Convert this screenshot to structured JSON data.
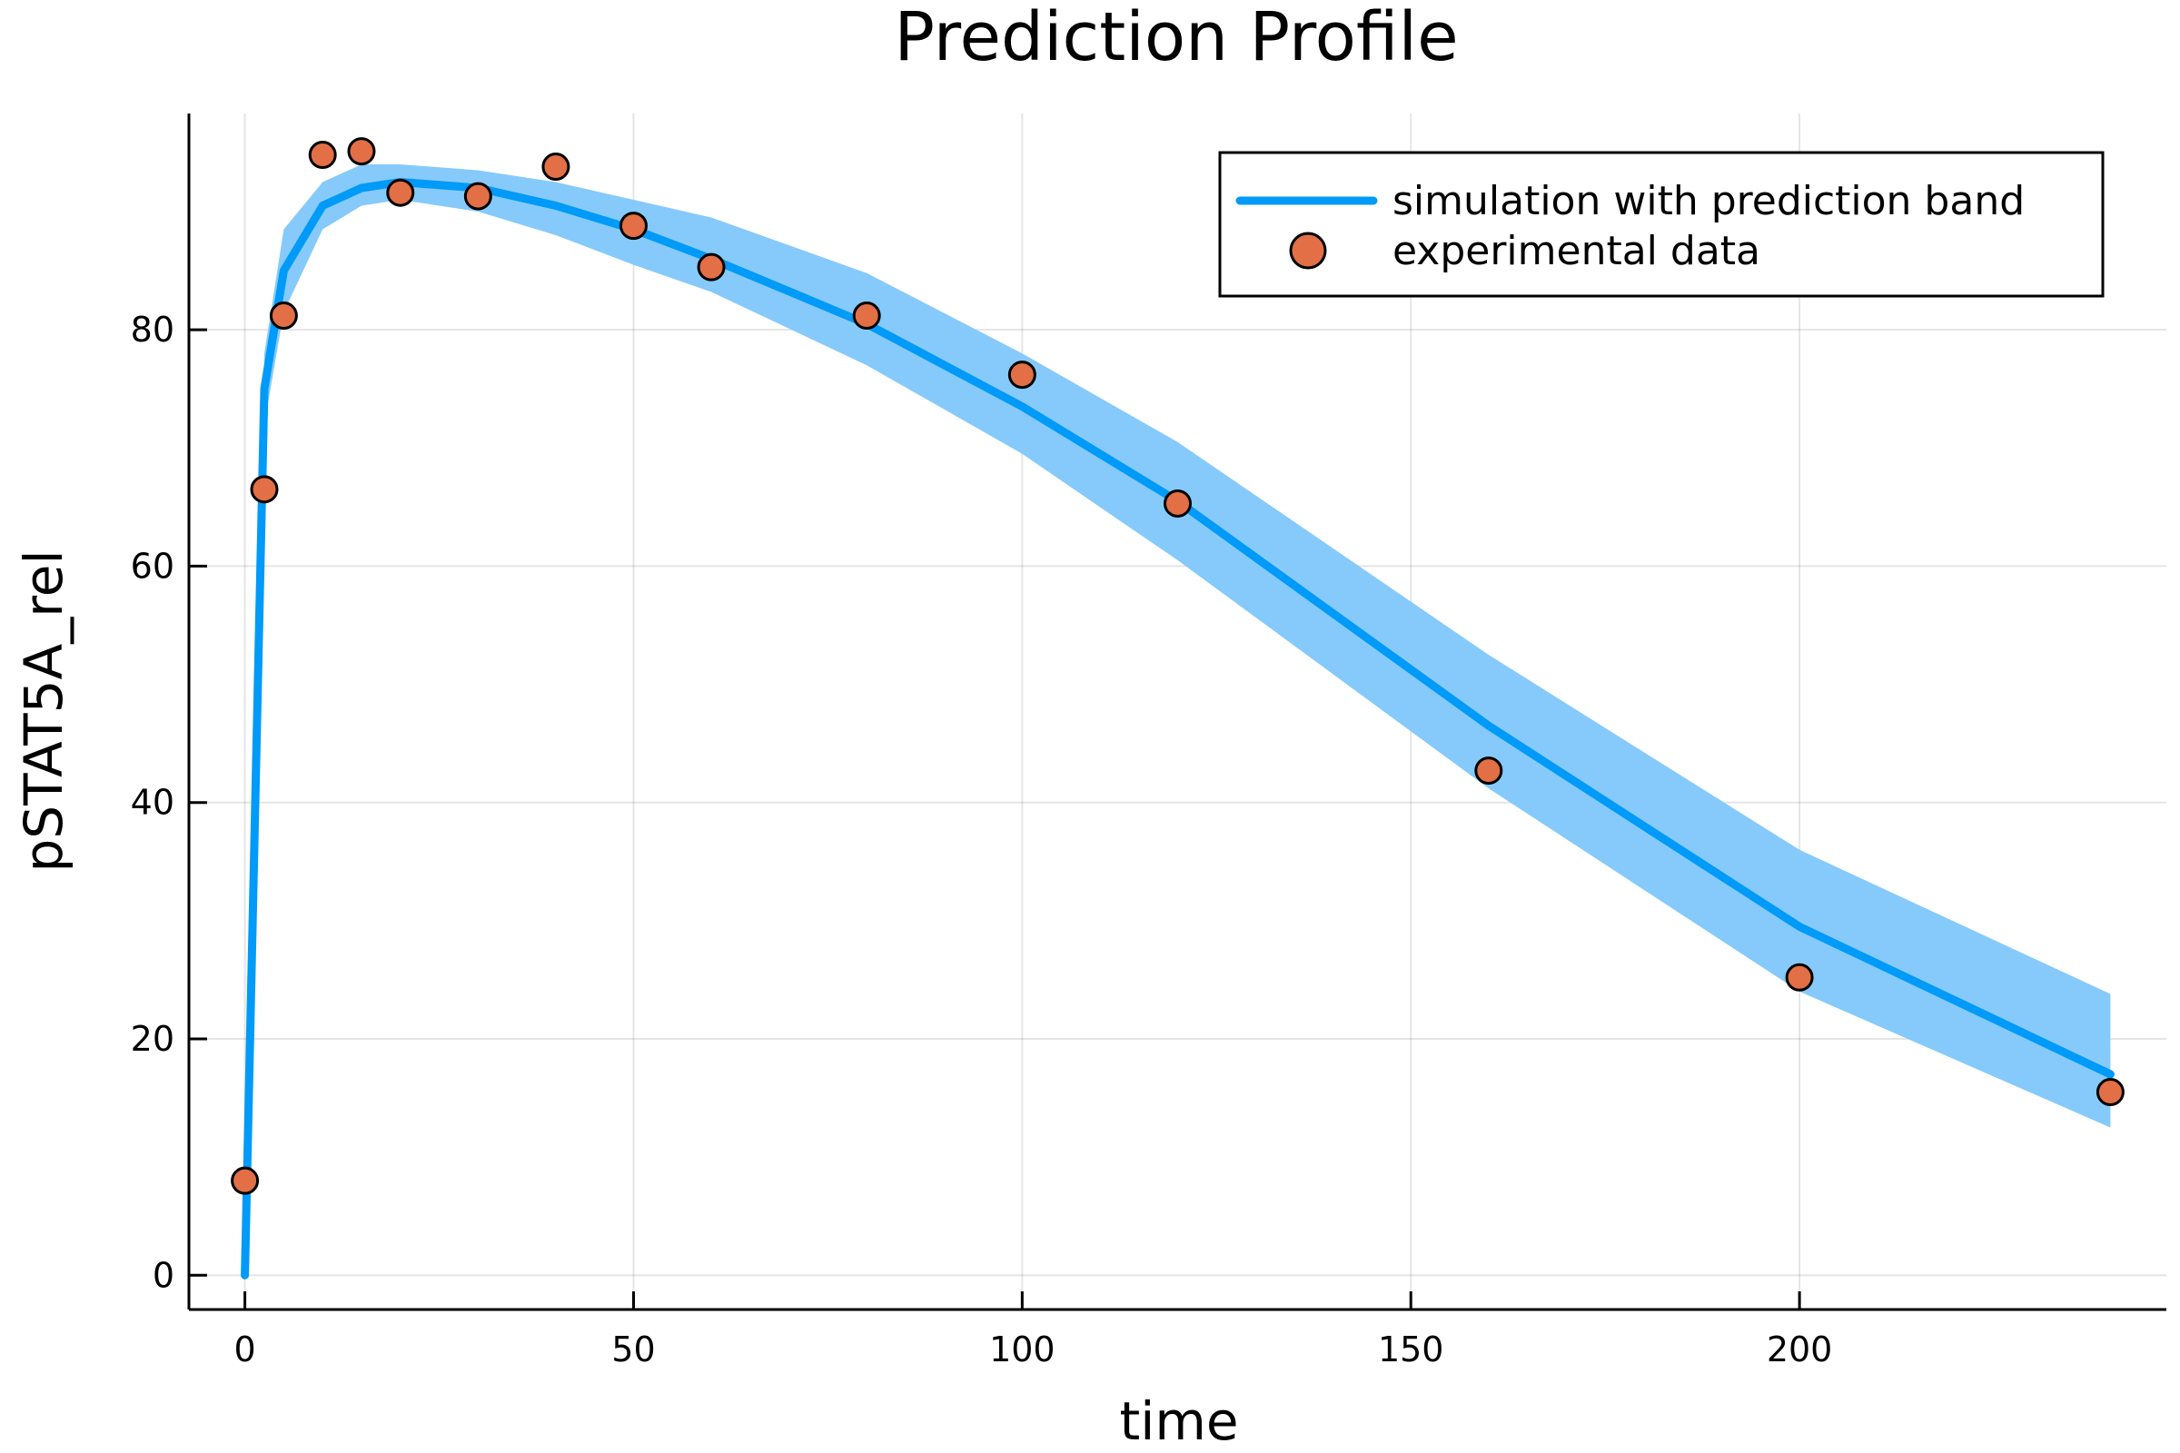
{
  "chart_data": {
    "type": "line",
    "title": "Prediction Profile",
    "xlabel": "time",
    "ylabel": "pSTAT5A_rel",
    "xlim": [
      -7.2,
      247.2
    ],
    "ylim": [
      -2.9,
      98.3
    ],
    "xticks": [
      0,
      50,
      100,
      150,
      200
    ],
    "yticks": [
      0,
      20,
      40,
      60,
      80
    ],
    "grid": true,
    "legend_position": "top-right",
    "series": [
      {
        "name": "simulation with prediction band",
        "kind": "line",
        "color": "#009AF9",
        "x": [
          0,
          2.5,
          5,
          10,
          15,
          20,
          30,
          40,
          50,
          60,
          80,
          100,
          120,
          160,
          200,
          240
        ],
        "y": [
          0,
          75,
          85,
          90.5,
          92,
          92.5,
          92,
          90.5,
          88.5,
          86,
          80.5,
          73.5,
          65.5,
          46.5,
          29.5,
          17
        ]
      },
      {
        "name": "prediction band",
        "kind": "band",
        "color": "#86CAFB",
        "x": [
          0,
          2.5,
          5,
          10,
          15,
          20,
          30,
          40,
          50,
          60,
          80,
          100,
          120,
          160,
          200,
          240
        ],
        "upper": [
          0,
          78,
          88.5,
          92.5,
          94,
          94,
          93.5,
          92.5,
          91,
          89.5,
          84.8,
          78,
          70.5,
          52.5,
          36,
          23.8
        ],
        "lower": [
          0,
          72,
          81.5,
          88.5,
          90.5,
          91,
          90,
          88,
          85.5,
          83.2,
          77,
          69.5,
          60.5,
          41.2,
          24,
          12.5
        ]
      },
      {
        "name": "experimental data",
        "kind": "scatter",
        "color": "#E26F46",
        "x": [
          0,
          2.5,
          5,
          10,
          15,
          20,
          30,
          40,
          50,
          60,
          80,
          100,
          120,
          160,
          200,
          240
        ],
        "y": [
          8,
          66.5,
          81.2,
          94.8,
          95.1,
          91.6,
          91.3,
          93.8,
          88.8,
          85.3,
          81.2,
          76.2,
          65.3,
          42.7,
          25.2,
          15.5
        ]
      }
    ]
  }
}
